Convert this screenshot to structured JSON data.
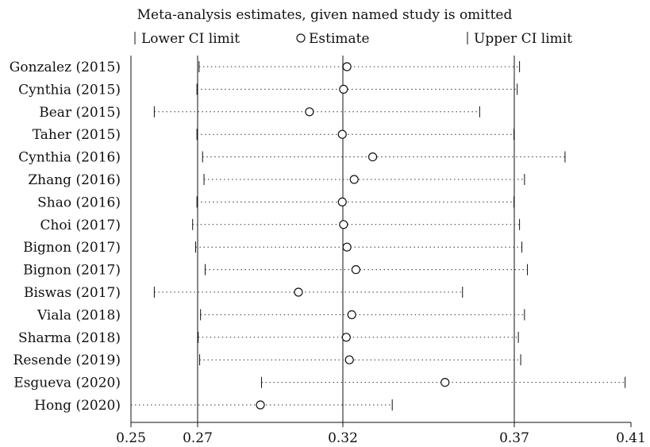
{
  "chart_data": {
    "type": "forest",
    "title": "Meta-analysis estimates, given named study is omitted",
    "legend": {
      "lower": "Lower CI limit",
      "estimate": "Estimate",
      "upper": "Upper CI limit",
      "placement": "top"
    },
    "x_ticks": [
      {
        "value": 0.25,
        "label": "0.25"
      },
      {
        "value": 0.27,
        "label": "0.27"
      },
      {
        "value": 0.32,
        "label": "0.32"
      },
      {
        "value": 0.37,
        "label": "0.37"
      },
      {
        "value": 0.41,
        "label": "0.41"
      }
    ],
    "xlim": [
      0.25,
      0.41
    ],
    "reference_lines": [
      0.27,
      0.32,
      0.37
    ],
    "studies": [
      {
        "label": "Gonzalez (2015)",
        "lower": 0.2705,
        "estimate": 0.3212,
        "upper": 0.3718
      },
      {
        "label": "Cynthia (2015)",
        "lower": 0.2698,
        "estimate": 0.3202,
        "upper": 0.371
      },
      {
        "label": "Bear (2015)",
        "lower": 0.257,
        "estimate": 0.3085,
        "upper": 0.3599
      },
      {
        "label": "Taher (2015)",
        "lower": 0.2698,
        "estimate": 0.3198,
        "upper": 0.3699
      },
      {
        "label": "Cynthia (2016)",
        "lower": 0.2717,
        "estimate": 0.3287,
        "upper": 0.3874
      },
      {
        "label": "Zhang (2016)",
        "lower": 0.2722,
        "estimate": 0.3233,
        "upper": 0.3735
      },
      {
        "label": "Shao (2016)",
        "lower": 0.2698,
        "estimate": 0.3198,
        "upper": 0.3699
      },
      {
        "label": "Choi (2017)",
        "lower": 0.2685,
        "estimate": 0.3202,
        "upper": 0.3718
      },
      {
        "label": "Bignon (2017)",
        "lower": 0.2694,
        "estimate": 0.3212,
        "upper": 0.3726
      },
      {
        "label": "Bignon (2017)",
        "lower": 0.2726,
        "estimate": 0.3238,
        "upper": 0.3745
      },
      {
        "label": "Biswas (2017)",
        "lower": 0.257,
        "estimate": 0.3047,
        "upper": 0.3549
      },
      {
        "label": "Viala (2018)",
        "lower": 0.271,
        "estimate": 0.3226,
        "upper": 0.3735
      },
      {
        "label": "Sharma (2018)",
        "lower": 0.2702,
        "estimate": 0.321,
        "upper": 0.3714
      },
      {
        "label": "Resende (2019)",
        "lower": 0.2707,
        "estimate": 0.3219,
        "upper": 0.3722
      },
      {
        "label": "Esgueva (2020)",
        "lower": 0.292,
        "estimate": 0.3498,
        "upper": 0.408
      },
      {
        "label": "Hong (2020)",
        "lower": 0.25,
        "estimate": 0.2916,
        "upper": 0.3344
      }
    ]
  }
}
